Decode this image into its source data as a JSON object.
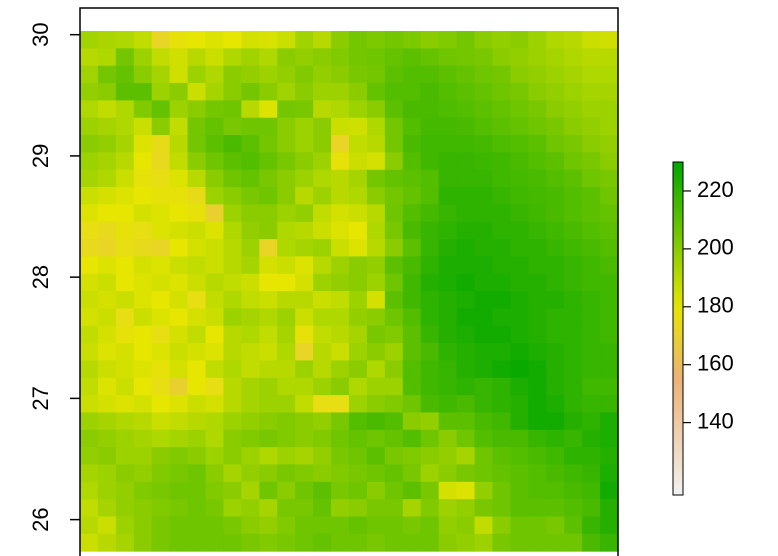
{
  "chart_data": {
    "type": "raster",
    "ylim": [
      25.7,
      30.22
    ],
    "yticks": [
      26,
      27,
      28,
      29,
      30
    ],
    "extent_y": [
      25.74,
      30.03
    ],
    "zlim": [
      115,
      230
    ],
    "colorbar_ticks": [
      140,
      160,
      180,
      200,
      220
    ],
    "colorscale": [
      [
        115,
        "#F2F2F2"
      ],
      [
        155,
        "#ECB176"
      ],
      [
        180,
        "#E6E600"
      ],
      [
        230,
        "#00A600"
      ]
    ],
    "values": [
      [
        195,
        193,
        192,
        188,
        172,
        178,
        180,
        182,
        180,
        184,
        183,
        186,
        195,
        190,
        200,
        205,
        203,
        205,
        203,
        200,
        202,
        205,
        200,
        198,
        200,
        196,
        192,
        190,
        186,
        185
      ],
      [
        190,
        192,
        205,
        196,
        188,
        185,
        190,
        186,
        192,
        195,
        192,
        200,
        198,
        200,
        202,
        205,
        206,
        208,
        210,
        208,
        206,
        205,
        204,
        200,
        198,
        196,
        194,
        192,
        190,
        190
      ],
      [
        195,
        205,
        208,
        200,
        194,
        185,
        196,
        192,
        200,
        198,
        196,
        198,
        202,
        198,
        200,
        204,
        205,
        210,
        212,
        212,
        210,
        208,
        206,
        205,
        200,
        198,
        196,
        194,
        192,
        192
      ],
      [
        198,
        200,
        210,
        210,
        196,
        200,
        186,
        194,
        200,
        205,
        200,
        195,
        200,
        196,
        196,
        200,
        208,
        212,
        212,
        214,
        212,
        210,
        208,
        206,
        204,
        200,
        198,
        196,
        194,
        194
      ],
      [
        192,
        188,
        192,
        202,
        208,
        196,
        200,
        205,
        206,
        190,
        182,
        205,
        204,
        190,
        192,
        196,
        200,
        210,
        214,
        214,
        213,
        212,
        210,
        208,
        206,
        204,
        200,
        198,
        196,
        196
      ],
      [
        196,
        194,
        192,
        186,
        200,
        188,
        205,
        208,
        204,
        206,
        206,
        200,
        196,
        200,
        186,
        185,
        192,
        205,
        212,
        215,
        215,
        214,
        212,
        210,
        208,
        206,
        204,
        200,
        198,
        196
      ],
      [
        200,
        198,
        194,
        182,
        175,
        190,
        205,
        210,
        214,
        210,
        205,
        200,
        196,
        200,
        172,
        188,
        190,
        205,
        214,
        216,
        216,
        216,
        215,
        213,
        212,
        210,
        206,
        204,
        200,
        198
      ],
      [
        196,
        194,
        190,
        180,
        174,
        188,
        200,
        206,
        210,
        212,
        208,
        204,
        200,
        196,
        178,
        186,
        184,
        200,
        212,
        216,
        218,
        218,
        217,
        216,
        214,
        212,
        210,
        206,
        204,
        200
      ],
      [
        194,
        192,
        186,
        178,
        176,
        182,
        190,
        200,
        206,
        208,
        204,
        200,
        196,
        192,
        190,
        194,
        205,
        208,
        210,
        212,
        218,
        218,
        218,
        216,
        215,
        214,
        212,
        210,
        206,
        204
      ],
      [
        186,
        184,
        182,
        180,
        178,
        178,
        175,
        196,
        200,
        204,
        206,
        200,
        190,
        196,
        190,
        192,
        200,
        205,
        208,
        212,
        220,
        220,
        220,
        218,
        216,
        215,
        214,
        212,
        210,
        206
      ],
      [
        182,
        180,
        180,
        184,
        182,
        180,
        178,
        170,
        196,
        200,
        200,
        196,
        198,
        188,
        184,
        186,
        190,
        206,
        212,
        215,
        218,
        220,
        220,
        220,
        218,
        216,
        214,
        212,
        210,
        208
      ],
      [
        176,
        174,
        178,
        176,
        182,
        184,
        186,
        182,
        192,
        198,
        200,
        192,
        190,
        186,
        182,
        180,
        192,
        204,
        214,
        218,
        220,
        222,
        222,
        220,
        220,
        218,
        216,
        214,
        212,
        210
      ],
      [
        174,
        172,
        176,
        174,
        172,
        180,
        184,
        186,
        190,
        196,
        172,
        192,
        194,
        196,
        186,
        182,
        190,
        200,
        210,
        218,
        222,
        224,
        222,
        222,
        220,
        220,
        218,
        216,
        214,
        212
      ],
      [
        180,
        182,
        180,
        184,
        182,
        186,
        188,
        186,
        190,
        194,
        184,
        186,
        182,
        190,
        196,
        200,
        198,
        210,
        214,
        220,
        224,
        224,
        224,
        222,
        222,
        220,
        220,
        218,
        216,
        214
      ],
      [
        184,
        186,
        180,
        182,
        184,
        182,
        186,
        190,
        188,
        186,
        180,
        180,
        184,
        196,
        198,
        200,
        196,
        206,
        216,
        222,
        224,
        226,
        224,
        224,
        222,
        222,
        220,
        218,
        216,
        216
      ],
      [
        186,
        184,
        186,
        182,
        180,
        184,
        176,
        188,
        192,
        188,
        186,
        190,
        190,
        186,
        188,
        196,
        184,
        210,
        216,
        220,
        222,
        224,
        226,
        226,
        224,
        222,
        222,
        220,
        218,
        216
      ],
      [
        184,
        186,
        176,
        186,
        182,
        180,
        184,
        186,
        196,
        194,
        192,
        196,
        186,
        192,
        192,
        198,
        200,
        206,
        212,
        220,
        222,
        226,
        226,
        224,
        224,
        222,
        220,
        220,
        218,
        216
      ],
      [
        188,
        184,
        178,
        180,
        176,
        184,
        188,
        180,
        190,
        192,
        188,
        194,
        178,
        188,
        190,
        194,
        204,
        202,
        210,
        218,
        222,
        224,
        226,
        226,
        224,
        222,
        220,
        220,
        218,
        216
      ],
      [
        186,
        182,
        184,
        180,
        182,
        186,
        184,
        182,
        190,
        188,
        186,
        192,
        172,
        190,
        186,
        196,
        200,
        196,
        210,
        214,
        220,
        222,
        224,
        224,
        226,
        224,
        222,
        220,
        218,
        218
      ],
      [
        190,
        186,
        184,
        182,
        178,
        184,
        180,
        188,
        192,
        188,
        190,
        190,
        196,
        190,
        196,
        200,
        192,
        200,
        212,
        216,
        218,
        222,
        224,
        226,
        228,
        226,
        222,
        220,
        218,
        218
      ],
      [
        188,
        182,
        186,
        180,
        176,
        170,
        180,
        176,
        190,
        194,
        196,
        192,
        192,
        196,
        200,
        192,
        196,
        196,
        212,
        216,
        218,
        220,
        218,
        220,
        224,
        226,
        222,
        220,
        216,
        216
      ],
      [
        186,
        184,
        182,
        184,
        180,
        182,
        186,
        184,
        190,
        194,
        196,
        196,
        188,
        176,
        176,
        196,
        200,
        202,
        206,
        214,
        216,
        214,
        218,
        220,
        222,
        226,
        224,
        220,
        218,
        218
      ],
      [
        196,
        194,
        192,
        190,
        186,
        188,
        190,
        192,
        196,
        198,
        200,
        202,
        200,
        198,
        204,
        212,
        214,
        212,
        200,
        198,
        210,
        210,
        214,
        216,
        222,
        226,
        226,
        222,
        220,
        224
      ],
      [
        200,
        198,
        196,
        194,
        192,
        194,
        196,
        192,
        200,
        202,
        204,
        202,
        200,
        202,
        206,
        208,
        206,
        208,
        212,
        206,
        200,
        206,
        212,
        214,
        214,
        218,
        220,
        218,
        222,
        224
      ],
      [
        198,
        200,
        196,
        196,
        200,
        202,
        200,
        196,
        200,
        196,
        192,
        196,
        194,
        198,
        204,
        206,
        210,
        204,
        202,
        200,
        198,
        194,
        206,
        210,
        212,
        214,
        216,
        220,
        220,
        222
      ],
      [
        194,
        196,
        200,
        198,
        202,
        204,
        206,
        200,
        194,
        198,
        200,
        204,
        202,
        200,
        202,
        204,
        206,
        208,
        204,
        196,
        200,
        204,
        206,
        208,
        210,
        212,
        214,
        216,
        218,
        224
      ],
      [
        192,
        196,
        198,
        202,
        204,
        206,
        206,
        202,
        200,
        194,
        206,
        200,
        206,
        210,
        204,
        206,
        200,
        206,
        210,
        204,
        184,
        182,
        198,
        206,
        210,
        212,
        212,
        214,
        216,
        226
      ],
      [
        188,
        194,
        198,
        200,
        202,
        204,
        206,
        204,
        196,
        198,
        194,
        204,
        204,
        208,
        198,
        200,
        204,
        204,
        194,
        202,
        196,
        198,
        204,
        206,
        210,
        210,
        210,
        212,
        214,
        222
      ],
      [
        190,
        186,
        196,
        200,
        204,
        206,
        206,
        206,
        204,
        200,
        198,
        202,
        206,
        206,
        206,
        208,
        206,
        206,
        204,
        206,
        198,
        200,
        188,
        200,
        206,
        206,
        204,
        210,
        218,
        222
      ],
      [
        186,
        190,
        194,
        200,
        204,
        206,
        206,
        206,
        206,
        204,
        202,
        204,
        206,
        208,
        206,
        206,
        204,
        206,
        206,
        206,
        200,
        198,
        196,
        204,
        206,
        206,
        206,
        206,
        214,
        218
      ]
    ]
  }
}
